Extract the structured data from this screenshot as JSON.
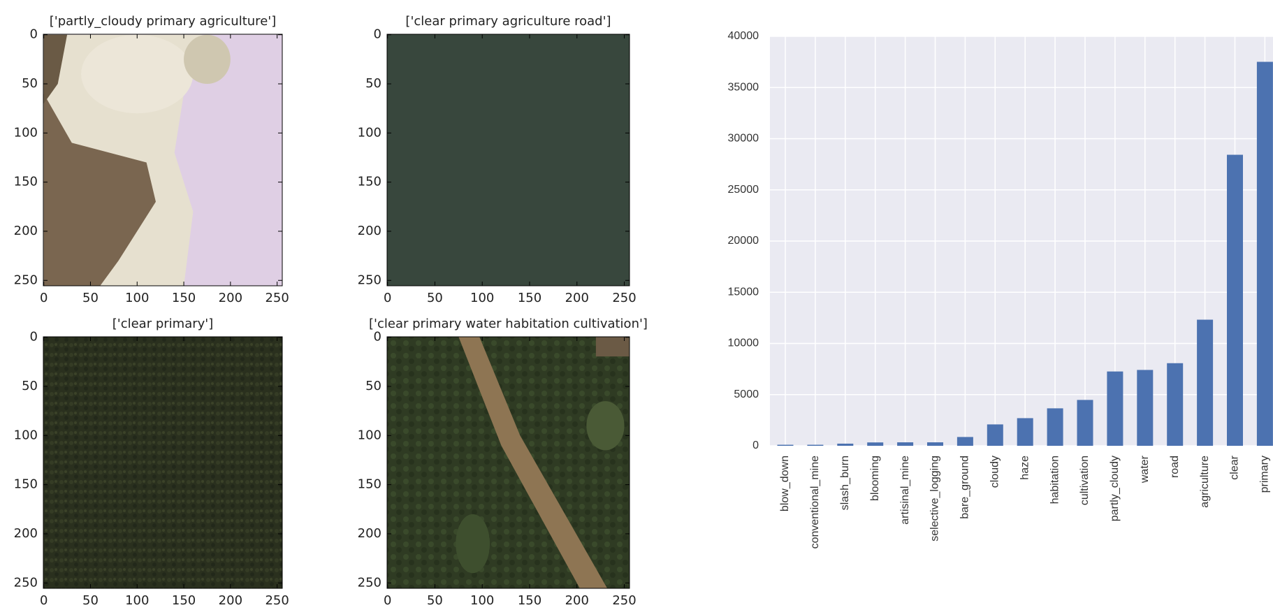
{
  "chart_data": [
    {
      "type": "image",
      "title": "['partly_cloudy primary agriculture']",
      "xlim": [
        -0.5,
        255.5
      ],
      "ylim": [
        255.5,
        -0.5
      ],
      "xticks": [
        0,
        50,
        100,
        150,
        200,
        250
      ],
      "yticks": [
        0,
        50,
        100,
        150,
        200,
        250
      ]
    },
    {
      "type": "image",
      "title": "['clear primary agriculture road']",
      "xlim": [
        -0.5,
        255.5
      ],
      "ylim": [
        255.5,
        -0.5
      ],
      "xticks": [
        0,
        50,
        100,
        150,
        200,
        250
      ],
      "yticks": [
        0,
        50,
        100,
        150,
        200,
        250
      ]
    },
    {
      "type": "image",
      "title": "['clear primary']",
      "xlim": [
        -0.5,
        255.5
      ],
      "ylim": [
        255.5,
        -0.5
      ],
      "xticks": [
        0,
        50,
        100,
        150,
        200,
        250
      ],
      "yticks": [
        0,
        50,
        100,
        150,
        200,
        250
      ]
    },
    {
      "type": "image",
      "title": "['clear primary water habitation cultivation']",
      "xlim": [
        -0.5,
        255.5
      ],
      "ylim": [
        255.5,
        -0.5
      ],
      "xticks": [
        0,
        50,
        100,
        150,
        200,
        250
      ],
      "yticks": [
        0,
        50,
        100,
        150,
        200,
        250
      ]
    },
    {
      "type": "bar",
      "color": "#4c72b0",
      "grid": true,
      "categories": [
        "blow_down",
        "conventional_mine",
        "slash_burn",
        "blooming",
        "artisinal_mine",
        "selective_logging",
        "bare_ground",
        "cloudy",
        "haze",
        "habitation",
        "cultivation",
        "partly_cloudy",
        "water",
        "road",
        "agriculture",
        "clear",
        "primary"
      ],
      "values": [
        100,
        100,
        210,
        330,
        340,
        340,
        860,
        2090,
        2700,
        3660,
        4480,
        7260,
        7410,
        8070,
        12320,
        28430,
        37510
      ],
      "ylim": [
        0,
        40000
      ],
      "yticks": [
        0,
        5000,
        10000,
        15000,
        20000,
        25000,
        30000,
        35000,
        40000
      ]
    }
  ]
}
